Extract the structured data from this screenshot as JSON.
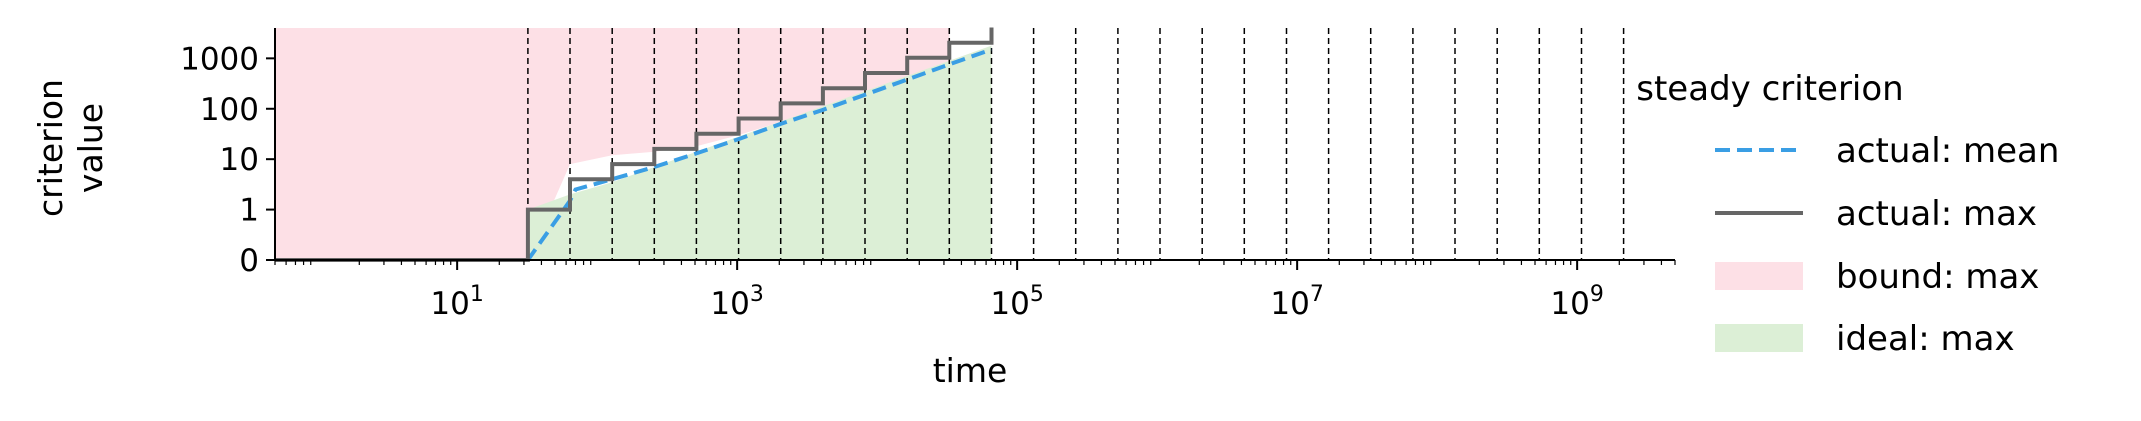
{
  "chart_data": {
    "type": "line",
    "title": "",
    "xlabel": "time",
    "ylabel_lines": [
      "criterion",
      "value"
    ],
    "x_scale": "log",
    "y_scale": "symlog",
    "xlim": [
      0.5,
      5000000000
    ],
    "ylim": [
      0,
      4000
    ],
    "x_ticks": [
      {
        "value": 10,
        "base": "10",
        "exp": "1"
      },
      {
        "value": 1000,
        "base": "10",
        "exp": "3"
      },
      {
        "value": 100000,
        "base": "10",
        "exp": "5"
      },
      {
        "value": 10000000,
        "base": "10",
        "exp": "7"
      },
      {
        "value": 1000000000,
        "base": "10",
        "exp": "9"
      }
    ],
    "y_ticks": [
      {
        "value": 0,
        "label": "0"
      },
      {
        "value": 1,
        "label": "1"
      },
      {
        "value": 10,
        "label": "10"
      },
      {
        "value": 100,
        "label": "100"
      },
      {
        "value": 1000,
        "label": "1000"
      }
    ],
    "grid": false,
    "vlines_x": [
      32,
      64,
      128,
      256,
      512,
      1024,
      2048,
      4096,
      8192,
      16384,
      32768,
      65536,
      131072,
      262144,
      524288,
      1048576,
      2097152,
      4194304,
      8388608,
      16777216,
      33554432,
      67108864,
      134217728,
      268435456,
      536870912,
      1073741824,
      2147483648
    ],
    "series": [
      {
        "name": "actual: mean",
        "style": "dashed",
        "color": "#3a9ee4",
        "x": [
          0.5,
          32,
          64,
          70,
          128,
          256,
          512,
          1024,
          2048,
          4096,
          8192,
          16384,
          32768,
          65536
        ],
        "y": [
          0,
          0,
          1.5,
          2.5,
          4,
          7,
          13,
          25,
          50,
          95,
          190,
          380,
          760,
          1500
        ]
      },
      {
        "name": "actual: max",
        "style": "step",
        "color": "#666666",
        "x": [
          0.5,
          32,
          64,
          128,
          256,
          512,
          1024,
          2048,
          4096,
          8192,
          16384,
          32768,
          65536
        ],
        "y": [
          0,
          1,
          4,
          8,
          16,
          32,
          64,
          128,
          256,
          512,
          1024,
          2048,
          4096
        ]
      },
      {
        "name": "bound: max",
        "style": "fill-between",
        "color": "#fde0e6",
        "x": [
          0.5,
          32,
          64,
          128,
          256,
          512,
          1024,
          2048,
          4096,
          8192,
          16384,
          32768
        ],
        "upper": [
          4000,
          4000,
          4000,
          4000,
          4000,
          4000,
          4000,
          4000,
          4000,
          4000,
          4000,
          4000
        ],
        "lower": [
          0,
          0,
          8,
          12,
          14,
          18,
          30,
          55,
          110,
          220,
          440,
          900
        ]
      },
      {
        "name": "ideal: max",
        "style": "fill-under",
        "color": "#dcefd6",
        "x": [
          32,
          64,
          128,
          256,
          512,
          1024,
          2048,
          4096,
          8192,
          16384,
          32768,
          65536
        ],
        "y": [
          1,
          2,
          3.5,
          7,
          14,
          28,
          56,
          112,
          224,
          448,
          896,
          1792
        ]
      }
    ],
    "legend": {
      "title": "steady criterion",
      "placement": "right outside",
      "entries": [
        "actual: mean",
        "actual: max",
        "bound: max",
        "ideal: max"
      ]
    }
  }
}
